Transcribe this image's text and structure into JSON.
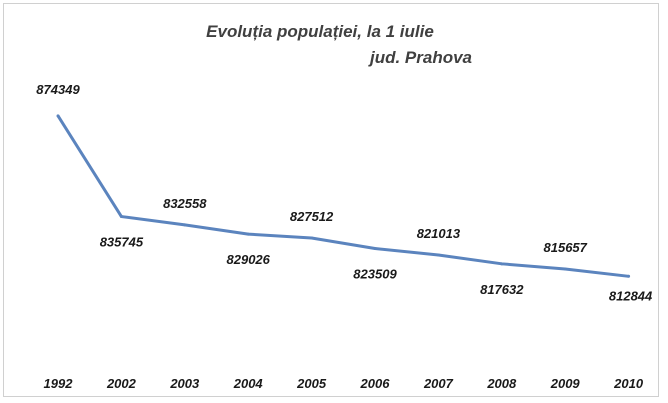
{
  "chart_data": {
    "type": "line",
    "title": "Evoluția populației, la 1 iulie",
    "subtitle": "jud. Prahova",
    "categories": [
      "1992",
      "2002",
      "2003",
      "2004",
      "2005",
      "2006",
      "2007",
      "2008",
      "2009",
      "2010"
    ],
    "series": [
      {
        "values": [
          874349,
          835745,
          832558,
          829026,
          827512,
          823509,
          821013,
          817632,
          815657,
          812844
        ],
        "data_labels": [
          "874349",
          "835745",
          "832558",
          "829026",
          "827512",
          "823509",
          "821013",
          "817632",
          "815657",
          "812844"
        ],
        "color": "#5b84be"
      }
    ],
    "ylim": [
      780000,
      890000
    ],
    "grid": false,
    "legend": "none"
  }
}
